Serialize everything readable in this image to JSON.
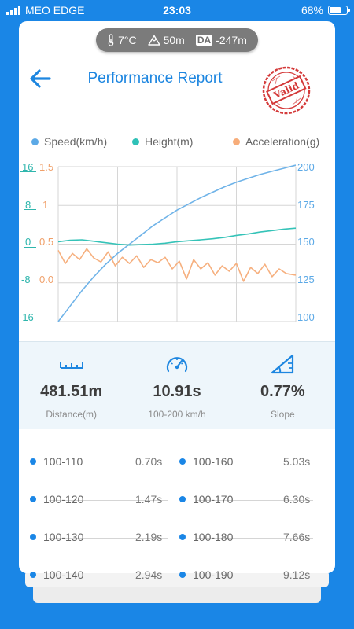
{
  "status": {
    "carrier": "MEO EDGE",
    "time": "23:03",
    "battery": "68%",
    "battery_level": 0.68
  },
  "env": {
    "temperature": "7°C",
    "altitude": "50m",
    "da_label": "DA",
    "density_altitude": "-247m"
  },
  "header": {
    "title": "Performance Report",
    "stamp_text": "Valid"
  },
  "legend": [
    {
      "label": "Speed(km/h)",
      "color": "#5ca9e6"
    },
    {
      "label": "Height(m)",
      "color": "#2fc1b7"
    },
    {
      "label": "Acceleration(g)",
      "color": "#f7ad7a"
    }
  ],
  "chart_data": {
    "type": "line",
    "xlim": [
      0,
      1
    ],
    "grid": true,
    "axes": {
      "height": {
        "ticks": [
          "16",
          "8",
          "0",
          "-8",
          "-16"
        ],
        "color": "#2fb6ad",
        "ylim": [
          -16,
          16
        ]
      },
      "acceleration": {
        "ticks": [
          "1.5",
          "1",
          "0.5",
          "0.0"
        ],
        "color": "#f0a06a",
        "ylim": [
          -0.5,
          1.5
        ]
      },
      "speed": {
        "ticks": [
          "200",
          "175",
          "150",
          "125",
          "100"
        ],
        "color": "#5ca9e6",
        "ylim": [
          100,
          200
        ]
      }
    },
    "series": [
      {
        "name": "Speed(km/h)",
        "axis": "speed",
        "color": "#6fb3e8",
        "x": [
          0,
          0.05,
          0.1,
          0.15,
          0.2,
          0.25,
          0.3,
          0.35,
          0.4,
          0.45,
          0.5,
          0.55,
          0.6,
          0.65,
          0.7,
          0.75,
          0.8,
          0.85,
          0.9,
          0.95,
          1
        ],
        "values": [
          100,
          110,
          120,
          129,
          137,
          144,
          150,
          156,
          162,
          167,
          172,
          176,
          180,
          183.5,
          187,
          190,
          192.5,
          195,
          197,
          199,
          201
        ]
      },
      {
        "name": "Height(m)",
        "axis": "height",
        "color": "#35c3b8",
        "x": [
          0,
          0.05,
          0.1,
          0.15,
          0.2,
          0.25,
          0.3,
          0.35,
          0.4,
          0.45,
          0.5,
          0.55,
          0.6,
          0.65,
          0.7,
          0.75,
          0.8,
          0.85,
          0.9,
          0.95,
          1
        ],
        "values": [
          0.5,
          0.8,
          0.9,
          0.6,
          0.3,
          0,
          -0.2,
          -0.1,
          0,
          0.2,
          0.5,
          0.7,
          0.9,
          1.1,
          1.4,
          1.8,
          2.1,
          2.5,
          2.8,
          3.1,
          3.3
        ]
      },
      {
        "name": "Acceleration(g)",
        "axis": "acceleration",
        "color": "#f6b07f",
        "x": [
          0,
          0.03,
          0.06,
          0.09,
          0.12,
          0.15,
          0.18,
          0.21,
          0.24,
          0.27,
          0.3,
          0.33,
          0.36,
          0.39,
          0.42,
          0.45,
          0.48,
          0.51,
          0.54,
          0.57,
          0.6,
          0.63,
          0.66,
          0.69,
          0.72,
          0.75,
          0.78,
          0.81,
          0.84,
          0.87,
          0.9,
          0.93,
          0.96,
          1
        ],
        "values": [
          0.42,
          0.25,
          0.38,
          0.3,
          0.44,
          0.32,
          0.27,
          0.4,
          0.22,
          0.33,
          0.25,
          0.35,
          0.2,
          0.3,
          0.26,
          0.33,
          0.18,
          0.28,
          0.05,
          0.3,
          0.18,
          0.26,
          0.1,
          0.22,
          0.15,
          0.25,
          0.02,
          0.2,
          0.12,
          0.24,
          0.08,
          0.18,
          0.12,
          0.1
        ]
      }
    ]
  },
  "stats": [
    {
      "value": "481.51m",
      "label": "Distance(m)",
      "icon": "ruler-icon"
    },
    {
      "value": "10.91s",
      "label": "100-200 km/h",
      "icon": "speedometer-icon"
    },
    {
      "value": "0.77%",
      "label": "Slope",
      "icon": "slope-icon"
    }
  ],
  "splits": [
    {
      "left_range": "100-110",
      "left_time": "0.70s",
      "right_range": "100-160",
      "right_time": "5.03s"
    },
    {
      "left_range": "100-120",
      "left_time": "1.47s",
      "right_range": "100-170",
      "right_time": "6.30s"
    },
    {
      "left_range": "100-130",
      "left_time": "2.19s",
      "right_range": "100-180",
      "right_time": "7.66s"
    },
    {
      "left_range": "100-140",
      "left_time": "2.94s",
      "right_range": "100-190",
      "right_time": "9.12s"
    }
  ]
}
